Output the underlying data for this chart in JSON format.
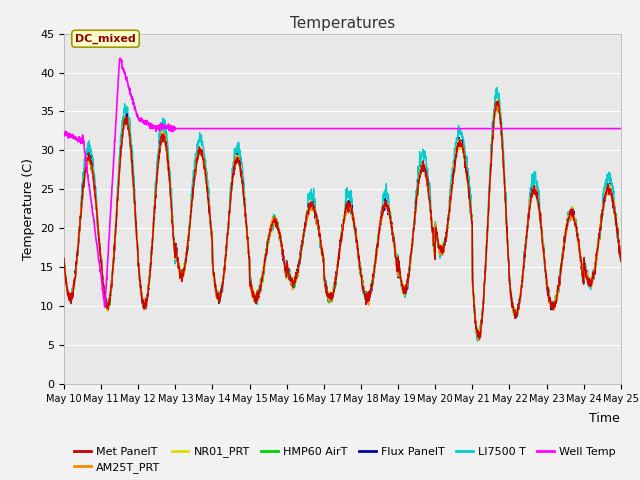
{
  "title": "Temperatures",
  "xlabel": "Time",
  "ylabel": "Temperature (C)",
  "ylim": [
    0,
    45
  ],
  "n_days": 15,
  "colors": {
    "Met PanelT": "#CC0000",
    "AM25T_PRT": "#FF8800",
    "NR01_PRT": "#DDDD00",
    "HMP60 AirT": "#00CC00",
    "Flux PanelT": "#000099",
    "LI7500 T": "#00CCCC",
    "Well Temp": "#FF00FF"
  },
  "bg_color": "#E8E8E8",
  "fig_bg_color": "#F2F2F2",
  "grid_color": "#FFFFFF",
  "annotation_text": "DC_mixed",
  "annotation_color": "#8B0000",
  "annotation_bg": "#FFFFCC",
  "annotation_edge": "#999900",
  "hline_y": 32.8,
  "tick_labels": [
    "May 10",
    "May 11",
    "May 12",
    "May 13",
    "May 14",
    "May 15",
    "May 16",
    "May 17",
    "May 18",
    "May 19",
    "May 20",
    "May 21",
    "May 22",
    "May 23",
    "May 24",
    "May 25"
  ],
  "yticks": [
    0,
    5,
    10,
    15,
    20,
    25,
    30,
    35,
    40,
    45
  ],
  "legend_items": [
    "Met PanelT",
    "AM25T_PRT",
    "NR01_PRT",
    "HMP60 AirT",
    "Flux PanelT",
    "LI7500 T",
    "Well Temp"
  ]
}
